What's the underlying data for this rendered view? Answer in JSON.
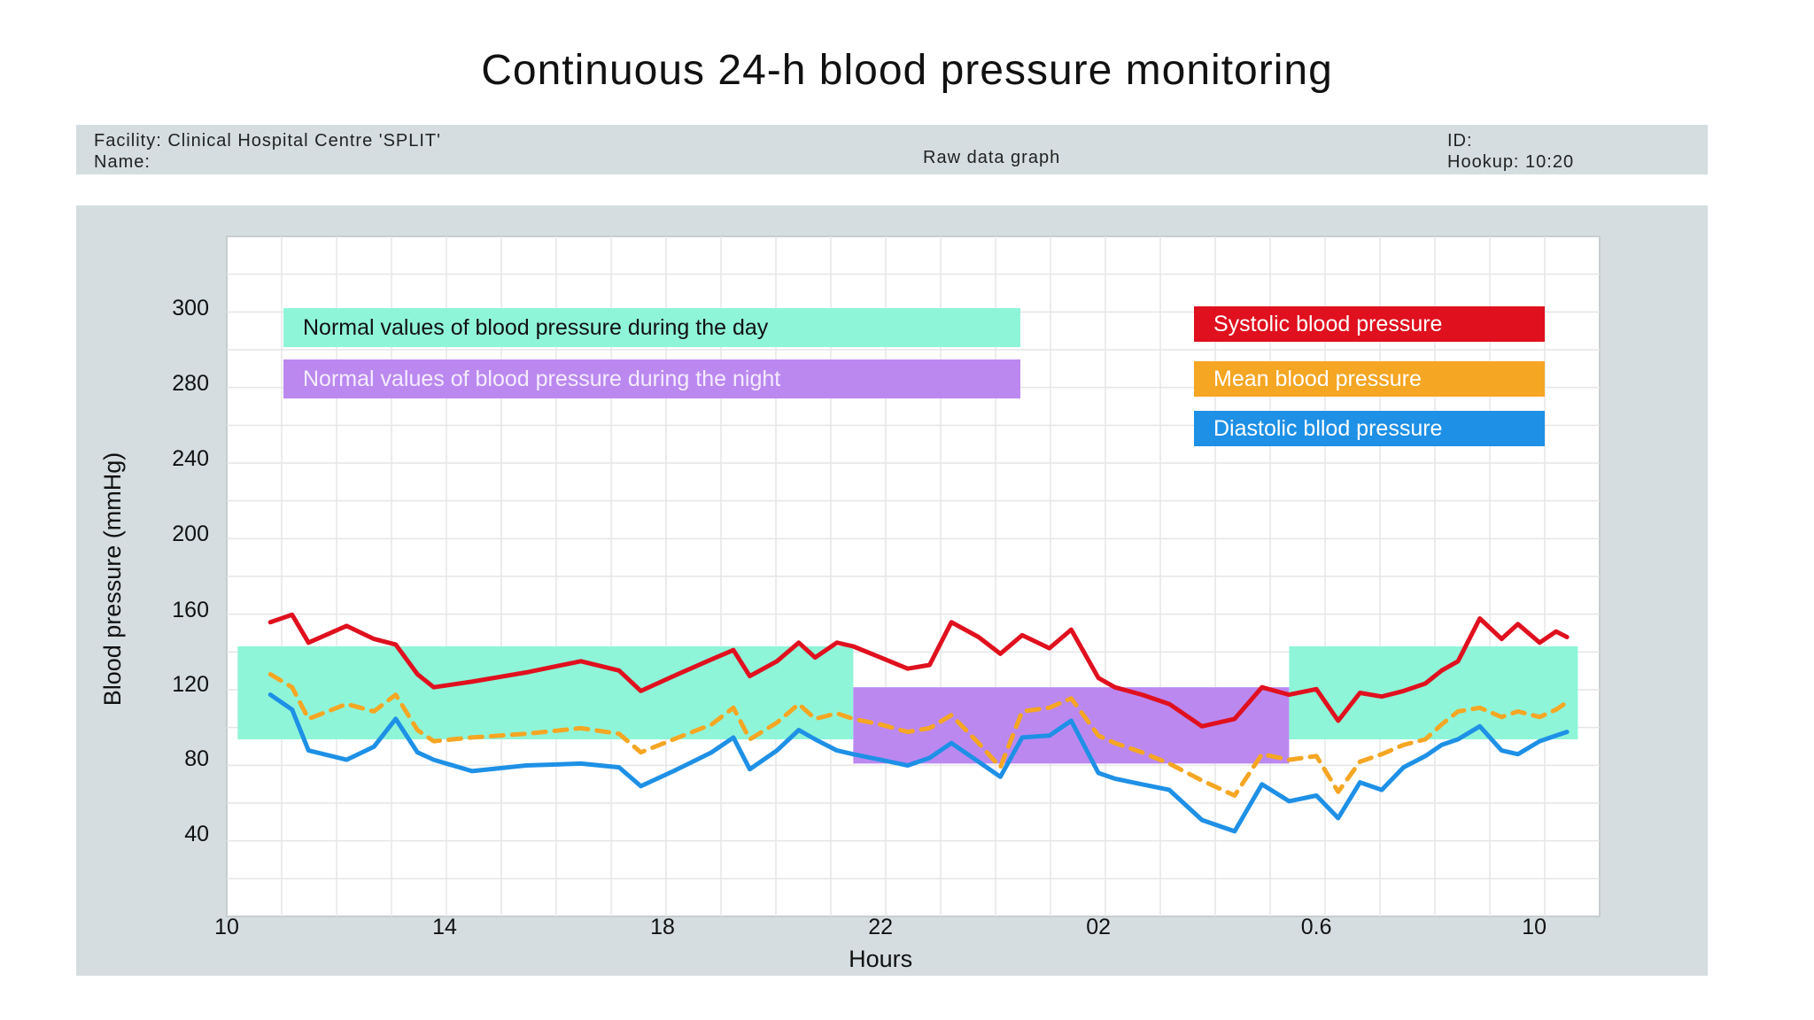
{
  "title": "Continuous 24-h blood pressure monitoring",
  "info": {
    "facility": "Facility: Clinical Hospital Centre 'SPLIT'",
    "name": "Name:",
    "graph_label": "Raw data graph",
    "id": "ID:",
    "hookup": "Hookup: 10:20"
  },
  "colors": {
    "systolic": "#e0101e",
    "mean": "#f5a623",
    "diastolic": "#1e90e6",
    "day_band": "#8ff5d8",
    "night_band": "#bb88f0",
    "panel": "#d5dde0",
    "grid": "#e6e6e6"
  },
  "legend": {
    "day_range": "Normal values of blood pressure during the day",
    "night_range": "Normal values of blood pressure during the night",
    "systolic": "Systolic blood pressure",
    "mean": "Mean blood pressure",
    "diastolic": "Diastolic bllod pressure"
  },
  "chart_data": {
    "type": "line",
    "xlabel": "Hours",
    "ylabel": "Blood pressure (mmHg)",
    "x_ticks": [
      "10",
      "14",
      "18",
      "22",
      "02",
      "0.6",
      "10"
    ],
    "y_ticks": [
      "300",
      "280",
      "240",
      "200",
      "160",
      "120",
      "80",
      "40"
    ],
    "grid": true,
    "legend_position": "top-right",
    "bands": [
      {
        "name": "Normal values of blood pressure during the day",
        "x_range": [
          10.2,
          21.5
        ],
        "y_range": [
          90,
          140
        ]
      },
      {
        "name": "Normal values of blood pressure during the night",
        "x_range": [
          21.5,
          29.5
        ],
        "y_range": [
          77,
          118
        ]
      },
      {
        "name": "Normal values of blood pressure during the day",
        "x_range": [
          29.5,
          34.8
        ],
        "y_range": [
          90,
          140
        ]
      }
    ],
    "series": [
      {
        "name": "Systolic blood pressure",
        "x": [
          10.8,
          11.2,
          11.5,
          12.2,
          12.7,
          13.1,
          13.5,
          13.8,
          14.5,
          15.5,
          16.5,
          17.2,
          17.6,
          18.2,
          18.9,
          19.3,
          19.6,
          20.1,
          20.5,
          20.8,
          21.2,
          21.5,
          22.0,
          22.5,
          22.9,
          23.3,
          23.8,
          24.2,
          24.6,
          25.1,
          25.5,
          26.0,
          26.3,
          26.8,
          27.3,
          27.9,
          28.5,
          29.0,
          29.5,
          30.0,
          30.4,
          30.8,
          31.2,
          31.6,
          32.0,
          32.3,
          32.6,
          33.0,
          33.4,
          33.7,
          34.1,
          34.4,
          34.6
        ],
        "values": [
          153,
          157,
          142,
          151,
          144,
          141,
          125,
          118,
          121,
          126,
          132,
          127,
          116,
          124,
          133,
          138,
          124,
          132,
          142,
          134,
          142,
          140,
          134,
          128,
          130,
          153,
          145,
          136,
          146,
          139,
          149,
          123,
          118,
          114,
          109,
          97,
          101,
          118,
          114,
          117,
          100,
          115,
          113,
          116,
          120,
          127,
          132,
          155,
          144,
          152,
          142,
          148,
          145
        ]
      },
      {
        "name": "Mean blood pressure",
        "x": [
          10.8,
          11.2,
          11.5,
          12.2,
          12.7,
          13.1,
          13.5,
          13.8,
          14.5,
          15.5,
          16.5,
          17.2,
          17.6,
          18.2,
          18.9,
          19.3,
          19.6,
          20.1,
          20.5,
          20.8,
          21.2,
          21.5,
          22.0,
          22.5,
          22.9,
          23.3,
          23.8,
          24.2,
          24.6,
          25.1,
          25.5,
          26.0,
          26.3,
          26.8,
          27.3,
          27.9,
          28.5,
          29.0,
          29.5,
          30.0,
          30.4,
          30.8,
          31.2,
          31.6,
          32.0,
          32.3,
          32.6,
          33.0,
          33.4,
          33.7,
          34.1,
          34.4,
          34.6
        ],
        "values": [
          125,
          118,
          101,
          109,
          105,
          114,
          95,
          89,
          91,
          93,
          96,
          93,
          83,
          90,
          98,
          107,
          90,
          99,
          109,
          101,
          104,
          101,
          98,
          94,
          96,
          103,
          88,
          75,
          105,
          107,
          112,
          92,
          88,
          83,
          77,
          68,
          60,
          82,
          79,
          81,
          62,
          78,
          82,
          87,
          90,
          98,
          105,
          107,
          102,
          105,
          102,
          106,
          110
        ]
      },
      {
        "name": "Diastolic bllod pressure",
        "x": [
          10.8,
          11.2,
          11.5,
          12.2,
          12.7,
          13.1,
          13.5,
          13.8,
          14.5,
          15.5,
          16.5,
          17.2,
          17.6,
          18.2,
          18.9,
          19.3,
          19.6,
          20.1,
          20.5,
          20.8,
          21.2,
          21.5,
          22.0,
          22.5,
          22.9,
          23.3,
          23.8,
          24.2,
          24.6,
          25.1,
          25.5,
          26.0,
          26.3,
          26.8,
          27.3,
          27.9,
          28.5,
          29.0,
          29.5,
          30.0,
          30.4,
          30.8,
          31.2,
          31.6,
          32.0,
          32.3,
          32.6,
          33.0,
          33.4,
          33.7,
          34.1,
          34.4,
          34.6
        ],
        "values": [
          114,
          106,
          84,
          79,
          86,
          101,
          83,
          79,
          73,
          76,
          77,
          75,
          65,
          73,
          83,
          91,
          74,
          84,
          95,
          90,
          84,
          82,
          79,
          76,
          80,
          88,
          78,
          70,
          91,
          92,
          100,
          72,
          69,
          66,
          63,
          47,
          41,
          66,
          57,
          60,
          48,
          67,
          63,
          75,
          81,
          87,
          90,
          97,
          84,
          82,
          89,
          92,
          94
        ]
      }
    ]
  }
}
